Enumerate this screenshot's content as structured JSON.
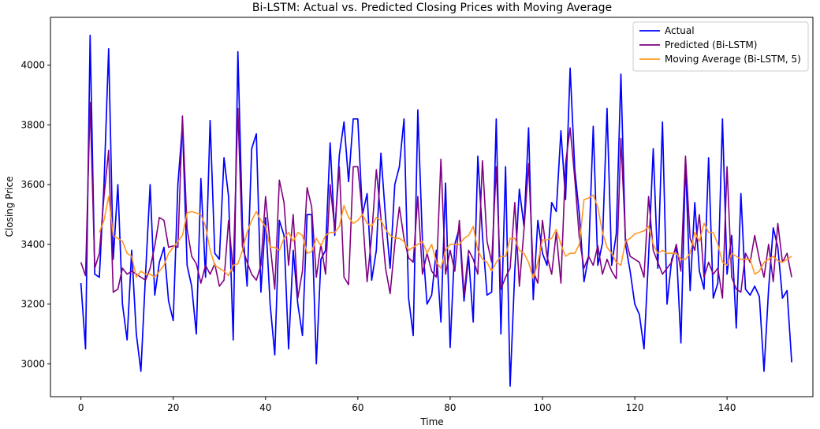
{
  "chart_data": {
    "type": "line",
    "title": "Bi-LSTM: Actual vs. Predicted Closing Prices with Moving Average",
    "xlabel": "Time",
    "ylabel": "Closing Price",
    "xlim": [
      -6.6,
      158.6
    ],
    "ylim": [
      2890,
      4160
    ],
    "xticks": [
      0,
      20,
      40,
      60,
      80,
      100,
      120,
      140
    ],
    "yticks": [
      3000,
      3200,
      3400,
      3600,
      3800,
      4000
    ],
    "grid": false,
    "legend_position": "upper-right",
    "series": [
      {
        "name": "Actual",
        "color": "#0000ff",
        "x_start": 0,
        "values": [
          3270,
          3050,
          4100,
          3300,
          3290,
          3600,
          4055,
          3350,
          3600,
          3200,
          3080,
          3380,
          3100,
          2975,
          3300,
          3600,
          3230,
          3340,
          3390,
          3210,
          3145,
          3600,
          3800,
          3330,
          3260,
          3100,
          3620,
          3290,
          3815,
          3370,
          3350,
          3690,
          3560,
          3080,
          4045,
          3460,
          3260,
          3720,
          3770,
          3240,
          3490,
          3200,
          3030,
          3480,
          3430,
          3050,
          3380,
          3200,
          3095,
          3500,
          3500,
          3000,
          3350,
          3380,
          3740,
          3430,
          3700,
          3810,
          3610,
          3820,
          3820,
          3500,
          3570,
          3280,
          3380,
          3705,
          3490,
          3320,
          3600,
          3660,
          3820,
          3220,
          3095,
          3850,
          3410,
          3200,
          3230,
          3380,
          3140,
          3605,
          3055,
          3400,
          3455,
          3210,
          3360,
          3140,
          3695,
          3430,
          3230,
          3240,
          3820,
          3100,
          3660,
          2925,
          3310,
          3585,
          3460,
          3790,
          3215,
          3480,
          3370,
          3330,
          3540,
          3510,
          3780,
          3550,
          3990,
          3650,
          3500,
          3275,
          3360,
          3795,
          3330,
          3405,
          3855,
          3330,
          3435,
          3970,
          3400,
          3310,
          3200,
          3165,
          3050,
          3360,
          3720,
          3320,
          3810,
          3200,
          3350,
          3390,
          3070,
          3680,
          3245,
          3540,
          3310,
          3250,
          3690,
          3220,
          3270,
          3820,
          3300,
          3430,
          3120,
          3570,
          3250,
          3230,
          3260,
          3225,
          2975,
          3250,
          3455,
          3390,
          3220,
          3245,
          3005
        ]
      },
      {
        "name": "Predicted (Bi-LSTM)",
        "color": "#800080",
        "x_start": 0,
        "values": [
          3340,
          3295,
          3875,
          3320,
          3370,
          3560,
          3715,
          3240,
          3250,
          3320,
          3300,
          3310,
          3300,
          3290,
          3280,
          3320,
          3395,
          3490,
          3480,
          3390,
          3395,
          3390,
          3830,
          3450,
          3360,
          3335,
          3270,
          3330,
          3300,
          3335,
          3260,
          3280,
          3480,
          3310,
          3855,
          3390,
          3340,
          3300,
          3280,
          3330,
          3560,
          3400,
          3250,
          3615,
          3540,
          3330,
          3500,
          3220,
          3310,
          3590,
          3525,
          3290,
          3400,
          3300,
          3600,
          3450,
          3660,
          3290,
          3265,
          3660,
          3660,
          3500,
          3275,
          3430,
          3650,
          3490,
          3320,
          3235,
          3400,
          3525,
          3420,
          3355,
          3340,
          3560,
          3300,
          3370,
          3310,
          3290,
          3685,
          3300,
          3380,
          3310,
          3480,
          3230,
          3380,
          3350,
          3300,
          3680,
          3410,
          3340,
          3660,
          3250,
          3290,
          3320,
          3540,
          3260,
          3450,
          3670,
          3310,
          3270,
          3480,
          3360,
          3300,
          3440,
          3270,
          3670,
          3790,
          3620,
          3420,
          3320,
          3360,
          3330,
          3395,
          3300,
          3350,
          3310,
          3285,
          3755,
          3420,
          3360,
          3350,
          3340,
          3290,
          3560,
          3380,
          3340,
          3300,
          3320,
          3340,
          3400,
          3310,
          3695,
          3420,
          3380,
          3500,
          3290,
          3340,
          3300,
          3320,
          3220,
          3660,
          3290,
          3250,
          3240,
          3370,
          3340,
          3430,
          3350,
          3290,
          3400,
          3275,
          3470,
          3340,
          3370,
          3290
        ]
      },
      {
        "name": "Moving Average (Bi-LSTM, 5)",
        "color": "#ff9922",
        "x_start": 4,
        "values": [
          3440,
          3480,
          3560,
          3430,
          3420,
          3410,
          3370,
          3360,
          3290,
          3310,
          3300,
          3300,
          3290,
          3310,
          3330,
          3370,
          3390,
          3410,
          3430,
          3505,
          3510,
          3505,
          3500,
          3460,
          3380,
          3330,
          3320,
          3310,
          3295,
          3330,
          3335,
          3380,
          3440,
          3480,
          3510,
          3480,
          3460,
          3390,
          3390,
          3380,
          3420,
          3440,
          3410,
          3440,
          3430,
          3370,
          3375,
          3420,
          3395,
          3430,
          3440,
          3440,
          3460,
          3530,
          3490,
          3470,
          3480,
          3500,
          3470,
          3460,
          3490,
          3480,
          3450,
          3430,
          3420,
          3420,
          3410,
          3380,
          3390,
          3400,
          3410,
          3370,
          3400,
          3340,
          3320,
          3380,
          3400,
          3400,
          3400,
          3420,
          3430,
          3460,
          3380,
          3350,
          3340,
          3310,
          3340,
          3360,
          3360,
          3420,
          3420,
          3380,
          3370,
          3340,
          3285,
          3340,
          3415,
          3415,
          3420,
          3450,
          3400,
          3360,
          3370,
          3370,
          3400,
          3550,
          3555,
          3565,
          3525,
          3440,
          3390,
          3370,
          3340,
          3330,
          3410,
          3420,
          3435,
          3440,
          3445,
          3460,
          3400,
          3370,
          3380,
          3370,
          3370,
          3370,
          3350,
          3350,
          3370,
          3440,
          3410,
          3470,
          3440,
          3440,
          3400,
          3340,
          3330,
          3370,
          3360,
          3350,
          3350,
          3350,
          3300,
          3310,
          3340,
          3350,
          3360,
          3345,
          3340,
          3350,
          3360
        ]
      }
    ]
  }
}
